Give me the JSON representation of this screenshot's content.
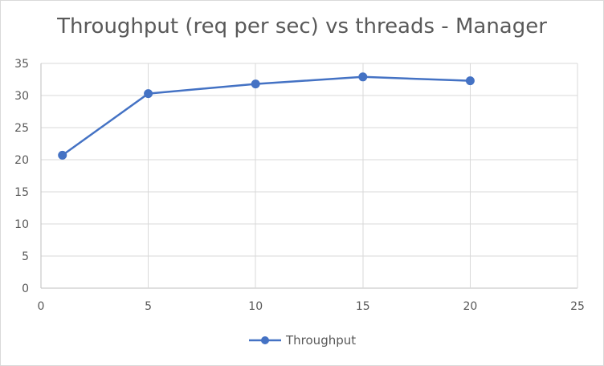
{
  "chart_data": {
    "type": "scatter",
    "title": "Throughput (req per sec) vs threads - Manager",
    "xlabel": "",
    "ylabel": "",
    "xlim": [
      0,
      25
    ],
    "ylim": [
      0,
      35
    ],
    "x_ticks": [
      0,
      5,
      10,
      15,
      20,
      25
    ],
    "y_ticks": [
      0,
      5,
      10,
      15,
      20,
      25,
      30,
      35
    ],
    "grid": true,
    "legend_position": "bottom",
    "series": [
      {
        "name": "Throughput",
        "color": "#4472c4",
        "marker": "circle",
        "line": "straight",
        "x": [
          1,
          5,
          10,
          15,
          20
        ],
        "y": [
          20.7,
          30.3,
          31.8,
          32.9,
          32.3
        ]
      }
    ]
  }
}
